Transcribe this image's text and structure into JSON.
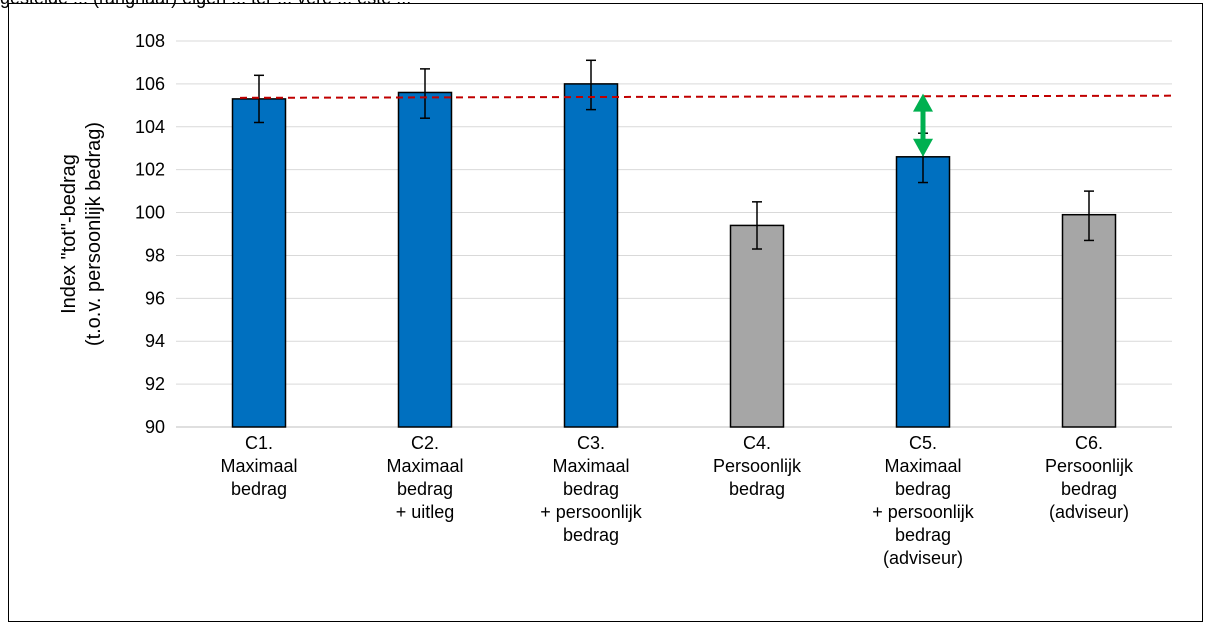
{
  "header_text": "gestelde ... (rangnaar) eigen ... ter ... vere ... este ...",
  "chart_data": {
    "type": "bar",
    "categories": [
      [
        "C1.",
        "Maximaal",
        "bedrag"
      ],
      [
        "C2.",
        "Maximaal",
        "bedrag",
        "+ uitleg"
      ],
      [
        "C3.",
        "Maximaal",
        "bedrag",
        "+ persoonlijk",
        "bedrag"
      ],
      [
        "C4.",
        "Persoonlijk",
        "bedrag"
      ],
      [
        "C5.",
        "Maximaal",
        "bedrag",
        "+ persoonlijk",
        "bedrag",
        "(adviseur)"
      ],
      [
        "C6.",
        "Persoonlijk",
        "bedrag",
        "(adviseur)"
      ]
    ],
    "values": [
      105.3,
      105.6,
      106.0,
      99.4,
      102.6,
      99.9
    ],
    "error_low": [
      104.2,
      104.4,
      104.8,
      98.3,
      101.4,
      98.7
    ],
    "error_high": [
      106.4,
      106.7,
      107.1,
      100.5,
      103.7,
      101.0
    ],
    "bar_colors": [
      "#0070c0",
      "#0070c0",
      "#0070c0",
      "#a6a6a6",
      "#0070c0",
      "#a6a6a6"
    ],
    "ylabel": [
      "Index \"tot\"-bedrag",
      "(t.o.v. persoonlijk bedrag)"
    ],
    "ylim": [
      90,
      108
    ],
    "yticks": [
      "90",
      "92",
      "94",
      "96",
      "98",
      "100",
      "102",
      "104",
      "106",
      "108"
    ],
    "reference_line": {
      "start": 105.35,
      "end": 105.45,
      "color": "#c00000",
      "style": "dashed"
    },
    "arrow": {
      "category_index": 4,
      "from": 102.6,
      "to": 105.45,
      "color": "#00b050"
    },
    "grid": true
  }
}
